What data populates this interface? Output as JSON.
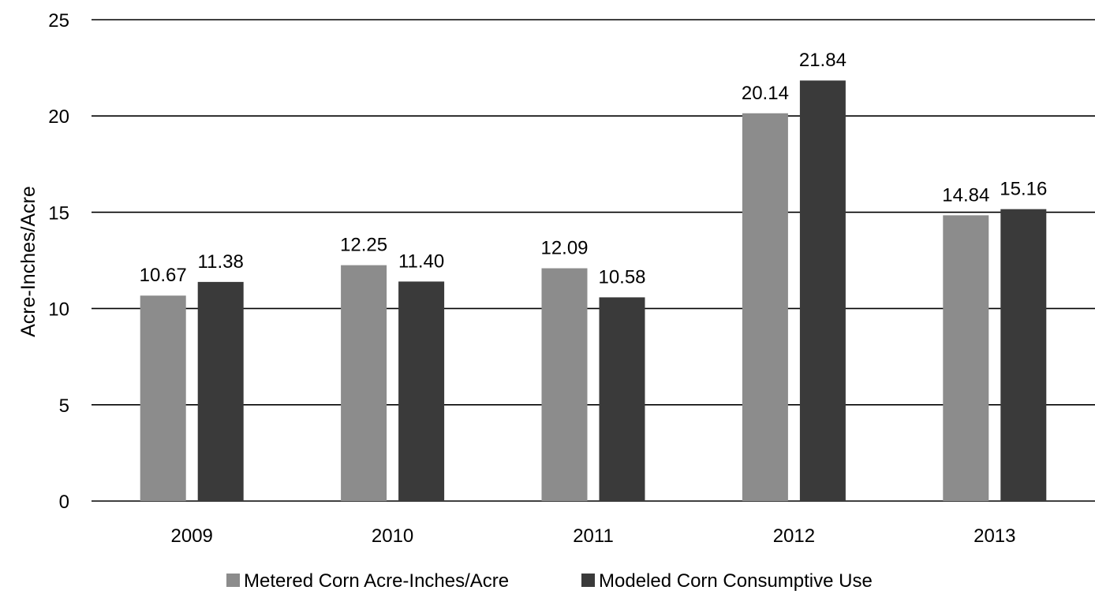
{
  "chart_data": {
    "type": "bar",
    "categories": [
      "2009",
      "2010",
      "2011",
      "2012",
      "2013"
    ],
    "series": [
      {
        "name": "Metered Corn Acre-Inches/Acre",
        "values": [
          10.67,
          12.25,
          12.09,
          20.14,
          14.84
        ],
        "labels": [
          "10.67",
          "12.25",
          "12.09",
          "20.14",
          "14.84"
        ],
        "color": "#8c8c8c"
      },
      {
        "name": "Modeled Corn Consumptive Use",
        "values": [
          11.38,
          11.4,
          10.58,
          21.84,
          15.16
        ],
        "labels": [
          "11.38",
          "11.40",
          "10.58",
          "21.84",
          "15.16"
        ],
        "color": "#3a3a3a"
      }
    ],
    "title": "",
    "xlabel": "",
    "ylabel": "Acre-Inches/Acre",
    "ylim": [
      0,
      25
    ],
    "yticks": [
      0,
      5,
      10,
      15,
      20,
      25
    ],
    "grid": true,
    "legend_position": "bottom"
  }
}
